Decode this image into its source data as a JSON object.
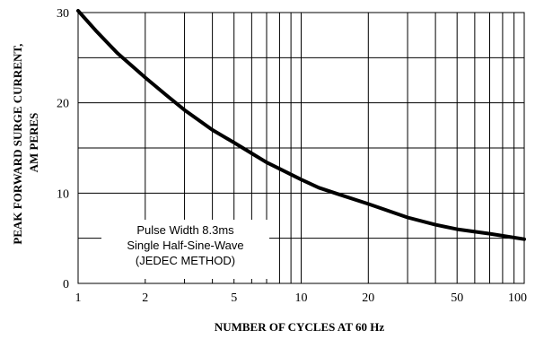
{
  "chart_data": {
    "type": "line",
    "xscale": "log",
    "xlabel": "NUMBER OF CYCLES AT 60 Hz",
    "ylabel_lines": [
      "PEAK FORWARD SURGE CURRENT,",
      "AM PERES"
    ],
    "xlim": [
      1,
      100
    ],
    "ylim": [
      0,
      30
    ],
    "x_ticks": [
      1,
      2,
      5,
      10,
      20,
      50,
      100
    ],
    "x_tick_labels": [
      "1",
      "2",
      "5",
      "10",
      "20",
      "50",
      "100"
    ],
    "y_ticks": [
      0,
      10,
      20,
      30
    ],
    "y_tick_labels": [
      "0",
      "10",
      "20",
      "30"
    ],
    "grid": true,
    "annotation_lines": [
      "Pulse Width 8.3ms",
      "Single Half-Sine-Wave",
      "(JEDEC METHOD)"
    ],
    "series": [
      {
        "x": [
          1,
          1.2,
          1.5,
          2,
          2.5,
          3,
          4,
          5,
          6,
          7,
          8,
          10,
          12,
          15,
          20,
          30,
          40,
          50,
          70,
          100
        ],
        "y": [
          30.2,
          28.0,
          25.5,
          22.8,
          20.8,
          19.2,
          17.0,
          15.6,
          14.4,
          13.4,
          12.7,
          11.5,
          10.6,
          9.8,
          8.8,
          7.3,
          6.5,
          6.0,
          5.5,
          4.9
        ]
      }
    ]
  }
}
